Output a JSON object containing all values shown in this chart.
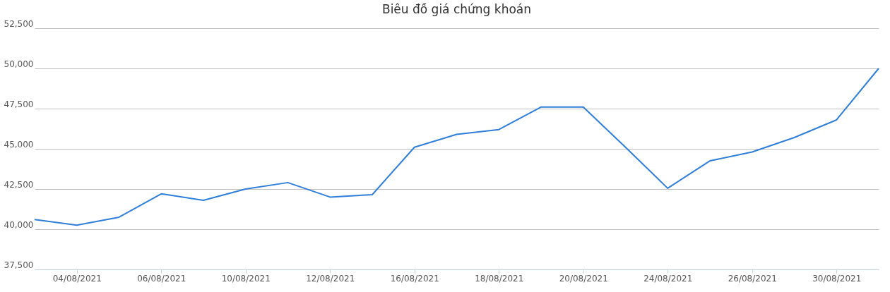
{
  "chart_data": {
    "type": "line",
    "title": "Biêu đồ giá chứng khoán",
    "categories": [
      null,
      "04/08/2021",
      null,
      "06/08/2021",
      null,
      "10/08/2021",
      null,
      "12/08/2021",
      null,
      "16/08/2021",
      null,
      "18/08/2021",
      null,
      "20/08/2021",
      null,
      "24/08/2021",
      null,
      "26/08/2021",
      null,
      "30/08/2021",
      null
    ],
    "series": [
      {
        "color": "#2f7ed8",
        "values": [
          40600,
          40250,
          40750,
          42200,
          41800,
          42500,
          42900,
          42000,
          42150,
          45100,
          45900,
          46200,
          47600,
          47600,
          45100,
          42550,
          44250,
          44800,
          45700,
          46800,
          50000
        ]
      }
    ],
    "ylim": [
      37500,
      52500
    ],
    "yticks": [
      {
        "value": 37500,
        "label": "37,500"
      },
      {
        "value": 40000,
        "label": "40,000"
      },
      {
        "value": 42500,
        "label": "42,500"
      },
      {
        "value": 45000,
        "label": "45,000"
      },
      {
        "value": 47500,
        "label": "47,500"
      },
      {
        "value": 50000,
        "label": "50,000"
      },
      {
        "value": 52500,
        "label": "52,500"
      }
    ],
    "grid": "y",
    "marker": "none",
    "line_style": "solid"
  }
}
